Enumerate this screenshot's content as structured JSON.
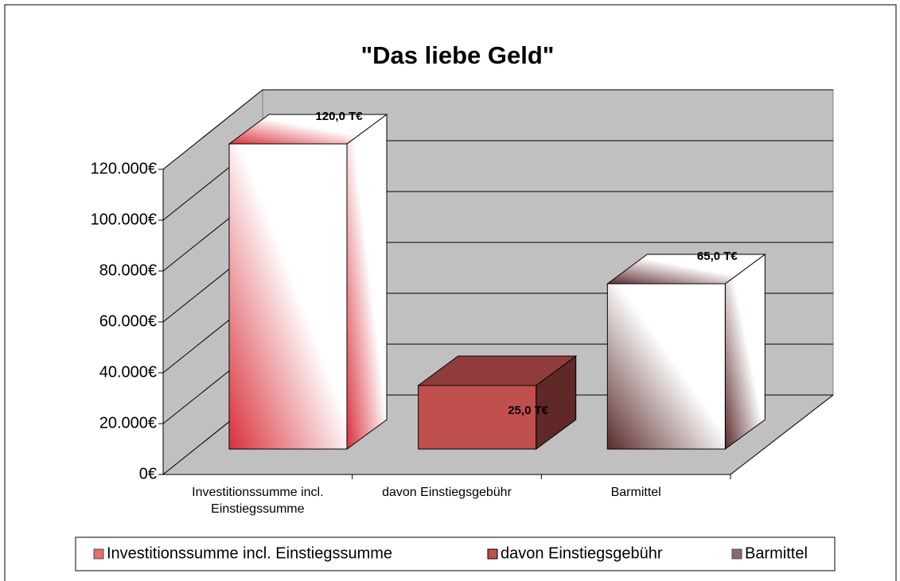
{
  "chart_data": {
    "type": "bar3d",
    "title": "\"Das liebe Geld\"",
    "categories": [
      "Investitionssumme incl. Einstiegssumme",
      "davon Einstiegsgebühr",
      "Barmittel"
    ],
    "values": [
      120000,
      25000,
      65000
    ],
    "value_labels": [
      "120,0 T€",
      "25,0 T€",
      "65,0 T€"
    ],
    "colors": [
      "#d9303a",
      "#c0504d",
      "#5a2a2a"
    ],
    "ylim": [
      0,
      120000
    ],
    "yticks": [
      {
        "value": 0,
        "label": "0€"
      },
      {
        "value": 20000,
        "label": "20.000€"
      },
      {
        "value": 40000,
        "label": "40.000€"
      },
      {
        "value": 60000,
        "label": "60.000€"
      },
      {
        "value": 80000,
        "label": "80.000€"
      },
      {
        "value": 100000,
        "label": "100.000€"
      },
      {
        "value": 120000,
        "label": "120.000€"
      }
    ],
    "grid": true,
    "legend": "bottom"
  }
}
